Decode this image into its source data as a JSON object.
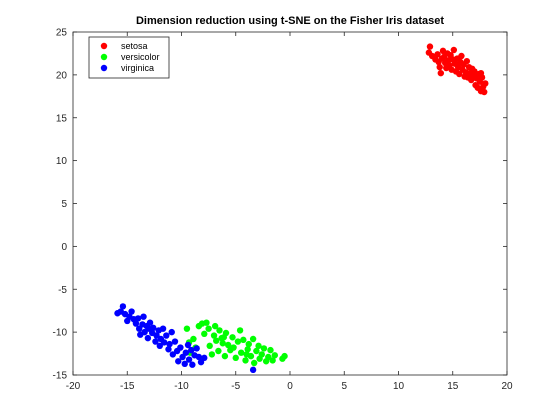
{
  "chart_data": {
    "type": "scatter",
    "title": "Dimension reduction using t-SNE on the Fisher Iris dataset",
    "xlabel": "",
    "ylabel": "",
    "xlim": [
      -20,
      20
    ],
    "ylim": [
      -15,
      25
    ],
    "xticks": [
      -20,
      -15,
      -10,
      -5,
      0,
      5,
      10,
      15,
      20
    ],
    "yticks": [
      -15,
      -10,
      -5,
      0,
      5,
      10,
      15,
      20,
      25
    ],
    "grid": false,
    "legend_position": "top-left",
    "series": [
      {
        "name": "setosa",
        "color": "#ff0000",
        "points": [
          [
            12.8,
            22.6
          ],
          [
            12.9,
            23.3
          ],
          [
            13.1,
            22.2
          ],
          [
            13.4,
            21.8
          ],
          [
            13.6,
            22.4
          ],
          [
            13.7,
            21.5
          ],
          [
            13.8,
            20.9
          ],
          [
            13.9,
            20.2
          ],
          [
            14.0,
            21.9
          ],
          [
            14.1,
            22.8
          ],
          [
            14.2,
            22.1
          ],
          [
            14.3,
            21.4
          ],
          [
            14.4,
            20.8
          ],
          [
            14.5,
            22.5
          ],
          [
            14.6,
            21.7
          ],
          [
            14.7,
            21.1
          ],
          [
            14.8,
            22.3
          ],
          [
            14.9,
            20.6
          ],
          [
            15.0,
            21.8
          ],
          [
            15.1,
            22.9
          ],
          [
            15.2,
            21.3
          ],
          [
            15.3,
            20.4
          ],
          [
            15.4,
            21.9
          ],
          [
            15.5,
            20.9
          ],
          [
            15.6,
            20.1
          ],
          [
            15.7,
            21.5
          ],
          [
            15.8,
            22.2
          ],
          [
            15.9,
            20.6
          ],
          [
            16.0,
            21.2
          ],
          [
            16.1,
            19.8
          ],
          [
            16.2,
            20.3
          ],
          [
            16.3,
            21.6
          ],
          [
            16.4,
            19.7
          ],
          [
            16.5,
            20.9
          ],
          [
            16.6,
            20.2
          ],
          [
            16.7,
            19.4
          ],
          [
            16.8,
            20.7
          ],
          [
            16.9,
            19.9
          ],
          [
            17.0,
            20.4
          ],
          [
            17.1,
            18.8
          ],
          [
            17.2,
            19.6
          ],
          [
            17.3,
            18.5
          ],
          [
            17.4,
            20.1
          ],
          [
            17.5,
            19.2
          ],
          [
            17.6,
            18.1
          ],
          [
            17.7,
            19.7
          ],
          [
            17.8,
            18.6
          ],
          [
            17.9,
            18.0
          ],
          [
            18.0,
            19.0
          ],
          [
            17.6,
            20.2
          ]
        ]
      },
      {
        "name": "versicolor",
        "color": "#00ff00",
        "points": [
          [
            -9.5,
            -9.6
          ],
          [
            -9.3,
            -11.2
          ],
          [
            -9.2,
            -12.4
          ],
          [
            -8.9,
            -10.8
          ],
          [
            -8.7,
            -11.8
          ],
          [
            -8.4,
            -9.3
          ],
          [
            -8.1,
            -9.0
          ],
          [
            -7.9,
            -10.2
          ],
          [
            -7.7,
            -8.9
          ],
          [
            -7.5,
            -9.6
          ],
          [
            -7.4,
            -11.6
          ],
          [
            -7.2,
            -12.6
          ],
          [
            -7.0,
            -10.4
          ],
          [
            -6.9,
            -9.3
          ],
          [
            -6.8,
            -11.0
          ],
          [
            -6.6,
            -12.2
          ],
          [
            -6.5,
            -9.8
          ],
          [
            -6.3,
            -10.7
          ],
          [
            -6.2,
            -11.3
          ],
          [
            -6.0,
            -12.8
          ],
          [
            -5.9,
            -10.1
          ],
          [
            -5.7,
            -11.5
          ],
          [
            -5.5,
            -12.1
          ],
          [
            -5.3,
            -10.6
          ],
          [
            -5.2,
            -11.8
          ],
          [
            -5.0,
            -13.0
          ],
          [
            -4.8,
            -11.1
          ],
          [
            -4.6,
            -9.8
          ],
          [
            -4.5,
            -12.4
          ],
          [
            -4.3,
            -10.9
          ],
          [
            -4.1,
            -13.3
          ],
          [
            -3.9,
            -12.0
          ],
          [
            -3.8,
            -11.4
          ],
          [
            -3.6,
            -12.8
          ],
          [
            -3.4,
            -10.8
          ],
          [
            -3.3,
            -13.6
          ],
          [
            -3.1,
            -12.2
          ],
          [
            -2.9,
            -11.6
          ],
          [
            -2.8,
            -13.1
          ],
          [
            -2.6,
            -12.6
          ],
          [
            -2.4,
            -11.9
          ],
          [
            -2.2,
            -13.4
          ],
          [
            -2.0,
            -12.9
          ],
          [
            -1.8,
            -12.1
          ],
          [
            -1.6,
            -13.3
          ],
          [
            -1.4,
            -12.7
          ],
          [
            -0.7,
            -13.1
          ],
          [
            -0.5,
            -12.8
          ],
          [
            -4.0,
            -12.6
          ],
          [
            -6.1,
            -10.6
          ]
        ]
      },
      {
        "name": "virginica",
        "color": "#0000ff",
        "points": [
          [
            -15.9,
            -7.8
          ],
          [
            -15.6,
            -7.6
          ],
          [
            -15.4,
            -7.0
          ],
          [
            -15.2,
            -7.9
          ],
          [
            -15.0,
            -8.7
          ],
          [
            -14.8,
            -8.2
          ],
          [
            -14.6,
            -7.6
          ],
          [
            -14.4,
            -8.5
          ],
          [
            -14.2,
            -9.0
          ],
          [
            -14.0,
            -8.4
          ],
          [
            -13.9,
            -9.6
          ],
          [
            -13.8,
            -10.3
          ],
          [
            -13.6,
            -9.1
          ],
          [
            -13.5,
            -8.2
          ],
          [
            -13.4,
            -10.0
          ],
          [
            -13.2,
            -9.3
          ],
          [
            -13.1,
            -10.7
          ],
          [
            -13.0,
            -9.6
          ],
          [
            -12.9,
            -8.9
          ],
          [
            -12.7,
            -10.1
          ],
          [
            -12.6,
            -9.5
          ],
          [
            -12.4,
            -11.1
          ],
          [
            -12.3,
            -10.4
          ],
          [
            -12.1,
            -9.8
          ],
          [
            -12.0,
            -11.6
          ],
          [
            -11.9,
            -10.8
          ],
          [
            -11.7,
            -9.6
          ],
          [
            -11.6,
            -11.2
          ],
          [
            -11.4,
            -10.4
          ],
          [
            -11.2,
            -12.0
          ],
          [
            -11.1,
            -11.4
          ],
          [
            -10.9,
            -10.0
          ],
          [
            -10.8,
            -12.6
          ],
          [
            -10.6,
            -11.1
          ],
          [
            -10.4,
            -12.2
          ],
          [
            -10.3,
            -13.4
          ],
          [
            -10.1,
            -11.8
          ],
          [
            -9.9,
            -12.9
          ],
          [
            -9.7,
            -13.7
          ],
          [
            -9.6,
            -12.4
          ],
          [
            -9.4,
            -11.5
          ],
          [
            -9.3,
            -13.2
          ],
          [
            -9.1,
            -12.1
          ],
          [
            -9.0,
            -13.8
          ],
          [
            -8.8,
            -12.7
          ],
          [
            -8.6,
            -11.9
          ],
          [
            -8.4,
            -12.9
          ],
          [
            -8.2,
            -13.5
          ],
          [
            -7.9,
            -13.0
          ],
          [
            -3.4,
            -14.4
          ]
        ]
      }
    ]
  }
}
